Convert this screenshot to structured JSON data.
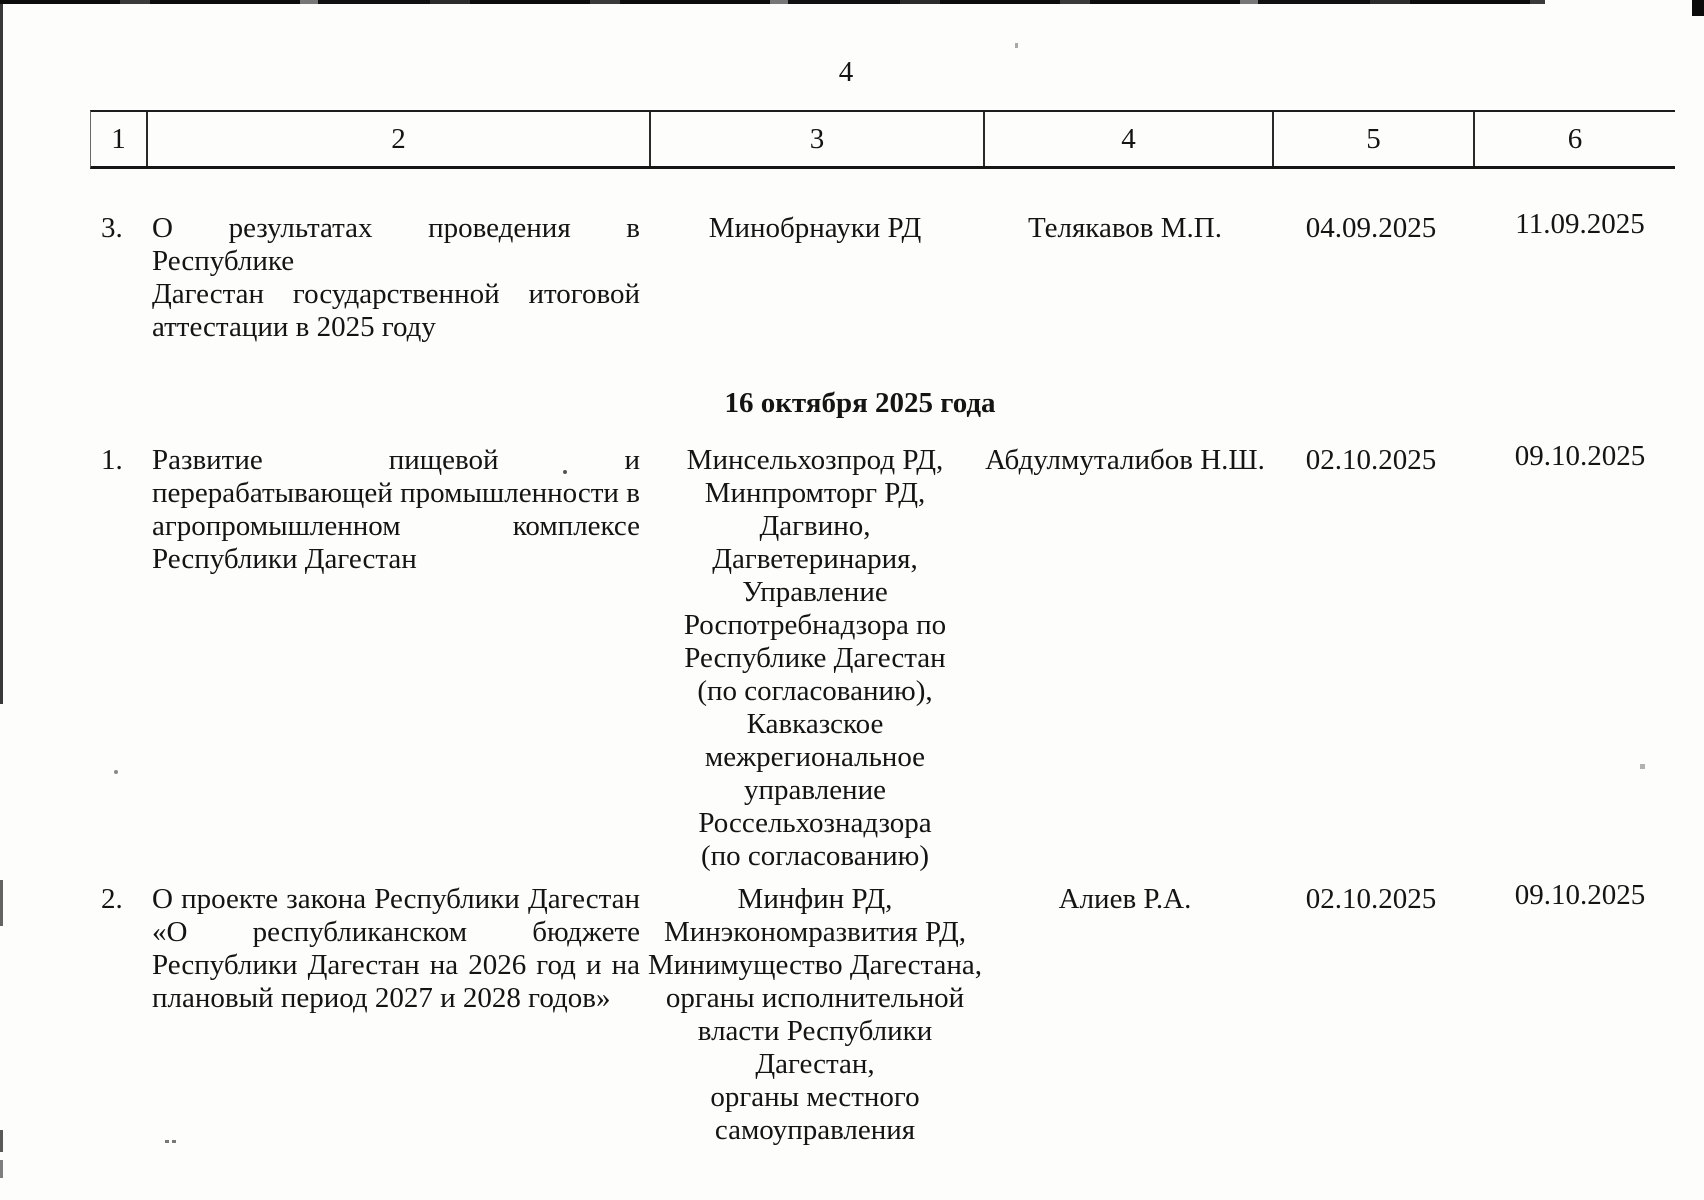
{
  "page_number": "4",
  "header_columns": [
    "1",
    "2",
    "3",
    "4",
    "5",
    "6"
  ],
  "section_heading": "16 октября 2025 года",
  "rows": {
    "r3": {
      "num": "3.",
      "topic": [
        "О результатах проведения в Республике",
        "Дагестан государственной итоговой",
        "аттестации в 2025 году"
      ],
      "responsible": [
        "Минобрнауки РД"
      ],
      "speaker": "Телякавов М.П.",
      "submitted": "04.09.2025",
      "considered": "11.09.2025"
    },
    "r1": {
      "num": "1.",
      "topic": [
        "Развитие пищевой и",
        "перерабатывающей промышленности в",
        "агропромышленном комплексе",
        "Республики Дагестан"
      ],
      "responsible": [
        "Минсельхозпрод РД,",
        "Минпромторг РД,",
        "Дагвино,",
        "Дагветеринария,",
        "Управление",
        "Роспотребнадзора по",
        "Республике Дагестан",
        "(по согласованию),",
        "Кавказское",
        "межрегиональное",
        "управление",
        "Россельхознадзора",
        "(по согласованию)"
      ],
      "speaker": "Абдулмуталибов Н.Ш.",
      "submitted": "02.10.2025",
      "considered": "09.10.2025"
    },
    "r2": {
      "num": "2.",
      "topic": [
        "О проекте закона Республики Дагестан",
        "«О республиканском бюджете",
        "Республики Дагестан на 2026 год и на",
        "плановый период 2027 и 2028 годов»"
      ],
      "responsible": [
        "Минфин РД,",
        "Минэкономразвития РД,",
        "Минимущество Дагестана,",
        "органы исполнительной",
        "власти Республики",
        "Дагестан,",
        "органы местного",
        "самоуправления"
      ],
      "speaker": "Алиев Р.А.",
      "submitted": "02.10.2025",
      "considered": "09.10.2025"
    }
  }
}
